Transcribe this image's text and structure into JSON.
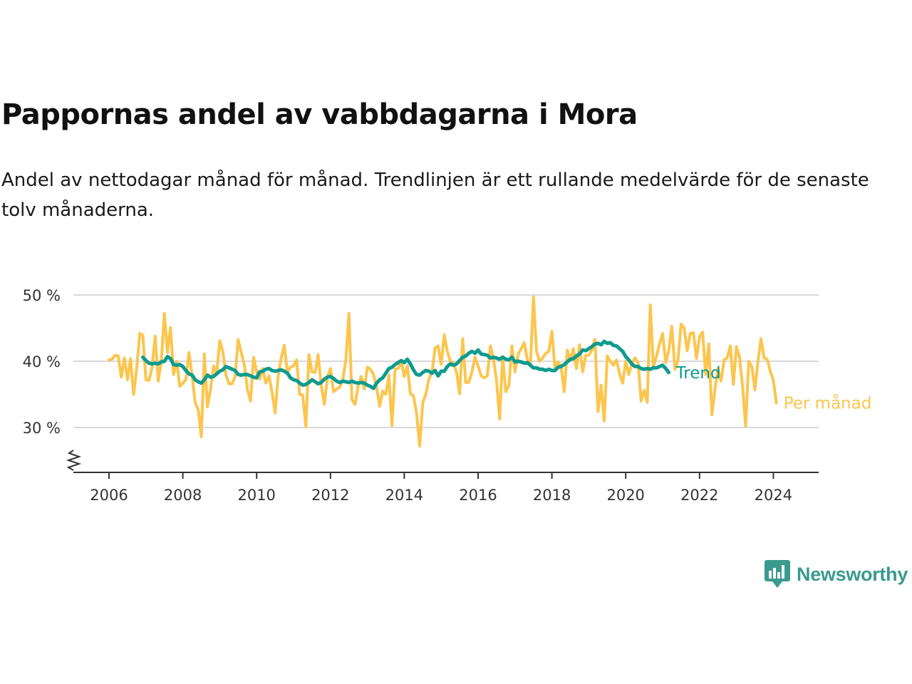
{
  "title": "Pappornas andel av vabbdagarna i Mora",
  "subtitle": "Andel av nettodagar månad för månad. Trendlinjen är ett rullande medelvärde för de senaste tolv månaderna.",
  "brand": "Newsworthy",
  "colors": {
    "monthly": "#fcc54d",
    "trend": "#0f9b8e",
    "grid": "#d9d9d9",
    "axis": "#333333",
    "brand": "#3a9a8e"
  },
  "chart_data": {
    "type": "line",
    "x_ticks": [
      "2006",
      "2008",
      "2010",
      "2012",
      "2014",
      "2016",
      "2018",
      "2020",
      "2022",
      "2024"
    ],
    "y_ticks": [
      "30 %",
      "40 %",
      "50 %"
    ],
    "y_tick_values": [
      30,
      40,
      50
    ],
    "ylim": [
      25,
      50
    ],
    "axis_break": true,
    "grid": true,
    "series": [
      {
        "name": "Trend",
        "start": "2006-12",
        "values": [
          40.6,
          40.1,
          39.7,
          39.6,
          39.7,
          39.6,
          39.9,
          40.0,
          40.7,
          40.4,
          39.5,
          39.4,
          39.5,
          39.2,
          38.6,
          38.1,
          37.9,
          37.2,
          36.9,
          36.7,
          37.2,
          37.9,
          37.6,
          37.7,
          38.1,
          38.5,
          38.7,
          39.2,
          39.0,
          38.8,
          38.6,
          38.0,
          37.9,
          38.0,
          38.0,
          37.8,
          37.6,
          37.5,
          38.4,
          38.5,
          38.8,
          38.9,
          38.6,
          38.5,
          38.6,
          38.7,
          38.5,
          38.2,
          37.5,
          37.2,
          37.1,
          36.7,
          36.4,
          36.5,
          36.8,
          37.2,
          36.9,
          36.6,
          36.8,
          37.3,
          37.6,
          37.7,
          37.4,
          37.0,
          36.8,
          37.0,
          36.9,
          36.8,
          37.0,
          36.8,
          36.7,
          36.8,
          36.7,
          36.4,
          36.2,
          35.9,
          36.7,
          37.2,
          37.5,
          38.2,
          38.9,
          39.1,
          39.5,
          39.8,
          40.1,
          39.8,
          40.3,
          39.6,
          38.7,
          38.0,
          37.9,
          38.3,
          38.6,
          38.5,
          38.2,
          38.6,
          37.8,
          38.5,
          38.5,
          39.2,
          39.6,
          39.4,
          39.6,
          40.1,
          40.6,
          40.8,
          41.2,
          41.5,
          41.2,
          41.7,
          41.1,
          41.0,
          40.9,
          40.5,
          40.6,
          40.5,
          40.3,
          40.6,
          40.3,
          40.2,
          40.6,
          39.9,
          40.0,
          39.9,
          39.7,
          39.8,
          39.4,
          39.0,
          39.0,
          38.8,
          38.8,
          38.6,
          38.8,
          38.6,
          38.6,
          39.1,
          39.2,
          39.5,
          39.9,
          40.3,
          40.4,
          40.8,
          41.1,
          41.7,
          41.6,
          41.9,
          42.2,
          42.6,
          42.7,
          42.5,
          43.0,
          42.7,
          42.8,
          42.4,
          42.3,
          41.9,
          41.5,
          40.7,
          40.2,
          39.6,
          39.2,
          39.2,
          38.9,
          38.8,
          38.9,
          38.8,
          39.0,
          39.0,
          39.2,
          39.4,
          38.9,
          38.3
        ]
      },
      {
        "name": "Per månad",
        "start": "2006-01",
        "values": [
          40.2,
          40.3,
          40.9,
          40.8,
          37.6,
          40.5,
          37.2,
          40.4,
          35.0,
          38.9,
          44.2,
          43.9,
          37.2,
          37.1,
          39.0,
          43.8,
          37.0,
          40.0,
          47.2,
          41.3,
          45.1,
          38.0,
          40.0,
          36.2,
          36.7,
          37.2,
          41.3,
          37.9,
          33.8,
          32.7,
          28.6,
          41.1,
          33.1,
          35.7,
          39.3,
          38.2,
          43.1,
          41.5,
          38.0,
          36.6,
          36.6,
          37.7,
          43.3,
          41.3,
          39.5,
          35.7,
          34.0,
          40.6,
          38.4,
          37.3,
          38.9,
          36.7,
          37.8,
          35.3,
          32.2,
          37.8,
          40.5,
          42.4,
          38.3,
          39.1,
          39.3,
          40.2,
          35.0,
          34.9,
          30.1,
          41.0,
          38.4,
          38.3,
          41.0,
          36.4,
          33.5,
          37.6,
          38.9,
          35.4,
          35.8,
          36.1,
          37.2,
          40.2,
          47.2,
          34.2,
          33.5,
          36.2,
          37.7,
          35.8,
          39.1,
          38.8,
          38.0,
          36.1,
          33.2,
          35.5,
          35.0,
          37.9,
          30.3,
          38.8,
          38.9,
          40.0,
          37.7,
          39.3,
          35.1,
          34.8,
          32.1,
          27.2,
          33.7,
          35.0,
          37.3,
          38.3,
          42.0,
          42.3,
          39.5,
          44.0,
          41.5,
          40.0,
          39.7,
          38.3,
          35.1,
          43.4,
          36.8,
          36.8,
          38.4,
          40.6,
          39.3,
          37.8,
          37.5,
          37.8,
          42.3,
          40.4,
          37.1,
          31.3,
          40.7,
          35.4,
          36.3,
          42.3,
          38.4,
          41.0,
          41.9,
          42.8,
          40.3,
          39.3,
          49.7,
          41.5,
          40.0,
          40.5,
          41.2,
          41.5,
          44.5,
          38.9,
          39.9,
          39.2,
          35.4,
          41.7,
          40.1,
          41.9,
          38.9,
          42.5,
          38.4,
          40.9,
          40.9,
          41.7,
          43.3,
          32.4,
          36.4,
          31.0,
          40.8,
          40.0,
          39.4,
          40.2,
          38.1,
          36.7,
          40.0,
          38.0,
          39.6,
          40.5,
          39.8,
          34.0,
          35.6,
          33.8,
          48.5,
          39.1,
          40.8,
          42.6,
          44.2,
          39.8,
          41.6,
          45.3,
          38.8,
          40.2,
          45.6,
          45.0,
          41.6,
          44.2,
          44.3,
          40.4,
          43.7,
          44.4,
          38.0,
          42.6,
          31.9,
          35.7,
          38.9,
          37.0,
          40.2,
          40.5,
          42.3,
          36.5,
          42.2,
          40.6,
          36.3,
          30.2,
          40.0,
          39.2,
          35.7,
          40.0,
          43.4,
          40.5,
          40.3,
          38.5,
          37.1,
          33.7
        ]
      }
    ]
  }
}
